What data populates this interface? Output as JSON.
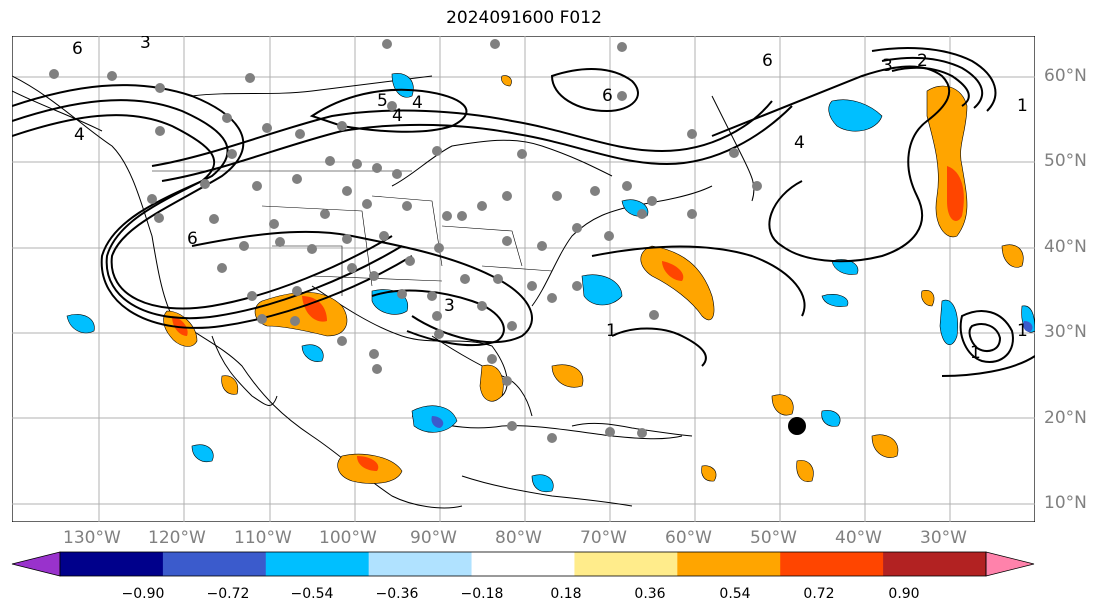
{
  "title": "2024091600 F012",
  "map": {
    "lat_labels": [
      "60°N",
      "50°N",
      "40°N",
      "30°N",
      "20°N",
      "10°N"
    ],
    "lon_labels": [
      "130°W",
      "120°W",
      "110°W",
      "100°W",
      "90°W",
      "80°W",
      "70°W",
      "60°W",
      "50°W",
      "40°W",
      "30°W"
    ],
    "contour_labels": [
      "6",
      "3",
      "4",
      "5",
      "6",
      "4",
      "6",
      "4",
      "3",
      "6",
      "3",
      "2",
      "1",
      "1",
      "1",
      "1",
      "4"
    ],
    "marker": "black-dot-storm-center"
  },
  "colorbar": {
    "colors": [
      "#9932cc",
      "#00008b",
      "#3b5bcc",
      "#00bfff",
      "#b0e2ff",
      "#ffffff",
      "#ffec8b",
      "#ffa500",
      "#ff4500",
      "#b22222",
      "#ff82ab"
    ],
    "tick_labels": [
      "−0.90",
      "−0.72",
      "−0.54",
      "−0.36",
      "−0.18",
      "0.18",
      "0.36",
      "0.54",
      "0.72",
      "0.90"
    ]
  }
}
